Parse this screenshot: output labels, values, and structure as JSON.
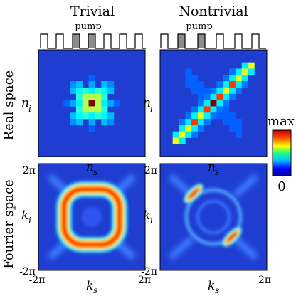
{
  "figure": {
    "column_titles": [
      "Trivial",
      "Nontrivial"
    ],
    "row_titles": [
      "Real space",
      "Fourier space"
    ],
    "pump_label": "pump",
    "real_space_axes": {
      "x": "n",
      "x_sub": "s",
      "y": "n",
      "y_sub": "i"
    },
    "fourier_space_axes": {
      "x": "k",
      "x_sub": "s",
      "y": "k",
      "y_sub": "i"
    },
    "fourier_ticks": {
      "neg": "-2π",
      "pos": "2π"
    },
    "colorbar": {
      "max_label": "max",
      "min_label": "0"
    },
    "panels": [
      {
        "id": "trivial-real",
        "pattern": "cross-centered"
      },
      {
        "id": "nontrivial-real",
        "pattern": "antidiagonal-line"
      },
      {
        "id": "trivial-fourier",
        "pattern": "rounded-square-ring"
      },
      {
        "id": "nontrivial-fourier",
        "pattern": "split-arcs"
      }
    ],
    "colors": {
      "background": "#1f3ed1",
      "low": "#0000ff",
      "high": "#cc0000",
      "pump_fill": "#8c8c8c"
    }
  }
}
